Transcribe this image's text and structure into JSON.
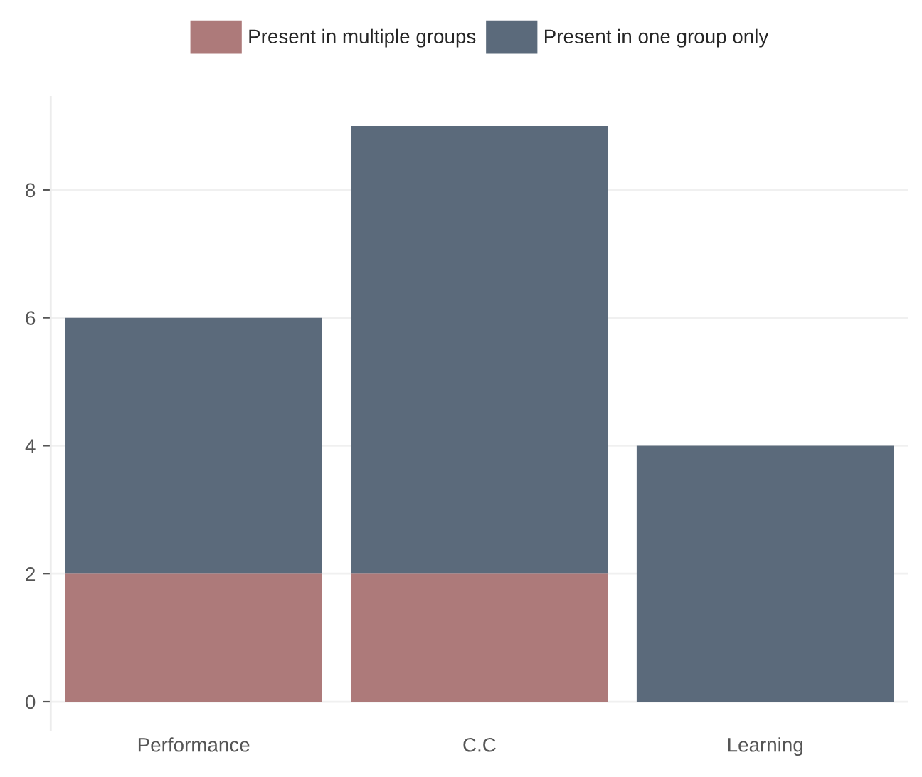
{
  "chart_data": {
    "type": "bar",
    "stacked": true,
    "categories": [
      "Performance",
      "C.C",
      "Learning"
    ],
    "series": [
      {
        "name": "Present in multiple groups",
        "color": "#ad7a7a",
        "values": [
          2,
          2,
          0
        ]
      },
      {
        "name": "Present in one group only",
        "color": "#5b6a7b",
        "values": [
          4,
          7,
          4
        ]
      }
    ],
    "ylim": [
      -0.45,
      9.45
    ],
    "yticks": [
      0,
      2,
      4,
      6,
      8
    ],
    "grid": "y",
    "legend": "top"
  }
}
